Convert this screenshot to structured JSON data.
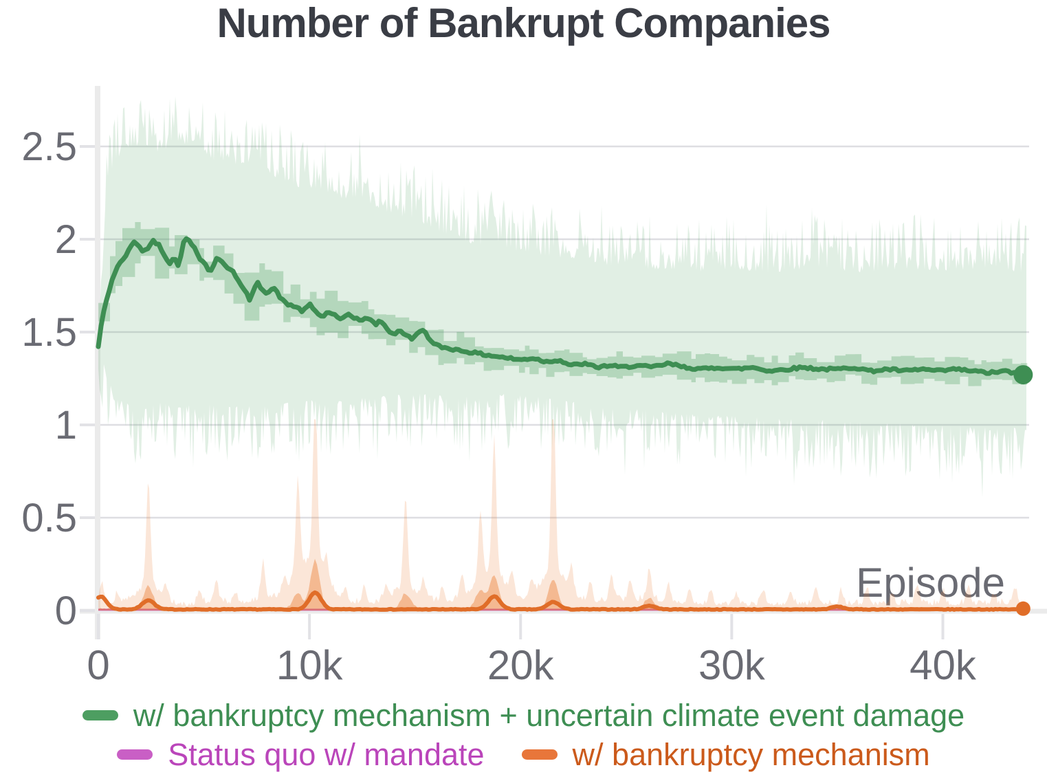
{
  "title": "Number of Bankrupt Companies",
  "colors": {
    "green_line": "#3e8e53",
    "green_band_light": "rgba(77,158,97,0.17)",
    "green_band_mid": "rgba(77,158,97,0.30)",
    "green_swatch": "#4d9e61",
    "green_text": "#3e8e53",
    "orange_line": "#e06d28",
    "orange_band_light": "rgba(235,130,60,0.20)",
    "orange_band_mid": "rgba(235,130,60,0.45)",
    "orange_swatch": "#e8763a",
    "orange_text": "#cb5a1b",
    "magenta_line": "#c65bc6",
    "magenta_swatch": "#c95fc5",
    "magenta_text": "#ba45ba",
    "title_color": "#3a3d45",
    "axis_text": "#6a6b73",
    "grid": "#dedee2",
    "axis_line": "#ebebeb",
    "tick_mark": "#e2e2e6"
  },
  "legend": {
    "items": [
      {
        "label": "w/ bankruptcy mechanism + uncertain climate event damage",
        "swatch": "#4d9e61",
        "text_color": "#3e8e53"
      },
      {
        "label": "Status quo w/ mandate",
        "swatch": "#c95fc5",
        "text_color": "#ba45ba"
      },
      {
        "label": "w/ bankruptcy mechanism",
        "swatch": "#e8763a",
        "text_color": "#cb5a1b"
      }
    ]
  },
  "chart_data": {
    "type": "line",
    "title": "Number of Bankrupt Companies",
    "xlabel": "Episode",
    "ylabel": "",
    "xlim": [
      0,
      45000
    ],
    "ylim": [
      0,
      2.81
    ],
    "grid": "horizontal-only",
    "legend_position": "bottom",
    "x_ticks": [
      {
        "v": 0,
        "label": "0"
      },
      {
        "v": 10000,
        "label": "10k"
      },
      {
        "v": 20000,
        "label": "20k"
      },
      {
        "v": 30000,
        "label": "30k"
      },
      {
        "v": 40000,
        "label": "40k"
      }
    ],
    "y_ticks": [
      {
        "v": 0,
        "label": "0"
      },
      {
        "v": 0.5,
        "label": "0.5"
      },
      {
        "v": 1,
        "label": "1"
      },
      {
        "v": 1.5,
        "label": "1.5"
      },
      {
        "v": 2,
        "label": "2"
      },
      {
        "v": 2.5,
        "label": "2.5"
      }
    ],
    "series": [
      {
        "name": "w/ bankruptcy mechanism + uncertain climate event damage",
        "color_key": "green",
        "end_dot": true,
        "end_value": 1.27,
        "mean": [
          [
            0,
            1.42
          ],
          [
            150,
            1.55
          ],
          [
            300,
            1.63
          ],
          [
            500,
            1.72
          ],
          [
            700,
            1.8
          ],
          [
            900,
            1.85
          ],
          [
            1100,
            1.88
          ],
          [
            1400,
            1.93
          ],
          [
            1700,
            1.99
          ],
          [
            1900,
            1.97
          ],
          [
            2100,
            1.93
          ],
          [
            2300,
            1.95
          ],
          [
            2600,
            1.99
          ],
          [
            2900,
            1.97
          ],
          [
            3100,
            1.92
          ],
          [
            3400,
            1.87
          ],
          [
            3600,
            1.9
          ],
          [
            3800,
            1.86
          ],
          [
            4100,
            2.01
          ],
          [
            4300,
            1.99
          ],
          [
            4600,
            1.95
          ],
          [
            4800,
            1.9
          ],
          [
            5100,
            1.86
          ],
          [
            5300,
            1.82
          ],
          [
            5600,
            1.9
          ],
          [
            5800,
            1.88
          ],
          [
            6100,
            1.85
          ],
          [
            6400,
            1.83
          ],
          [
            6700,
            1.76
          ],
          [
            7000,
            1.71
          ],
          [
            7200,
            1.67
          ],
          [
            7500,
            1.77
          ],
          [
            7700,
            1.74
          ],
          [
            8000,
            1.71
          ],
          [
            8300,
            1.74
          ],
          [
            8600,
            1.69
          ],
          [
            8900,
            1.65
          ],
          [
            9300,
            1.64
          ],
          [
            9700,
            1.61
          ],
          [
            10000,
            1.65
          ],
          [
            10300,
            1.61
          ],
          [
            10600,
            1.58
          ],
          [
            10900,
            1.61
          ],
          [
            11200,
            1.59
          ],
          [
            11500,
            1.56
          ],
          [
            11800,
            1.6
          ],
          [
            12100,
            1.58
          ],
          [
            12500,
            1.56
          ],
          [
            12800,
            1.58
          ],
          [
            13100,
            1.54
          ],
          [
            13400,
            1.56
          ],
          [
            13700,
            1.51
          ],
          [
            14000,
            1.49
          ],
          [
            14300,
            1.51
          ],
          [
            14600,
            1.48
          ],
          [
            14900,
            1.46
          ],
          [
            15200,
            1.51
          ],
          [
            15500,
            1.5
          ],
          [
            15800,
            1.44
          ],
          [
            16200,
            1.42
          ],
          [
            16700,
            1.41
          ],
          [
            17200,
            1.4
          ],
          [
            17700,
            1.39
          ],
          [
            18200,
            1.38
          ],
          [
            18800,
            1.37
          ],
          [
            19400,
            1.36
          ],
          [
            20000,
            1.35
          ],
          [
            20600,
            1.36
          ],
          [
            21200,
            1.34
          ],
          [
            21800,
            1.35
          ],
          [
            22400,
            1.32
          ],
          [
            23000,
            1.33
          ],
          [
            23600,
            1.31
          ],
          [
            24200,
            1.32
          ],
          [
            24800,
            1.31
          ],
          [
            25500,
            1.32
          ],
          [
            26200,
            1.31
          ],
          [
            27000,
            1.33
          ],
          [
            27800,
            1.31
          ],
          [
            28600,
            1.3
          ],
          [
            29400,
            1.31
          ],
          [
            30200,
            1.3
          ],
          [
            31000,
            1.31
          ],
          [
            31800,
            1.29
          ],
          [
            32600,
            1.3
          ],
          [
            33400,
            1.31
          ],
          [
            34200,
            1.3
          ],
          [
            35000,
            1.3
          ],
          [
            35800,
            1.31
          ],
          [
            36600,
            1.29
          ],
          [
            37400,
            1.3
          ],
          [
            38200,
            1.29
          ],
          [
            39000,
            1.3
          ],
          [
            39800,
            1.29
          ],
          [
            40600,
            1.3
          ],
          [
            41400,
            1.29
          ],
          [
            42200,
            1.28
          ],
          [
            43000,
            1.29
          ],
          [
            43600,
            1.27
          ],
          [
            44000,
            1.27
          ]
        ],
        "band_outer_top": [
          [
            0,
            1.65
          ],
          [
            400,
            2.45
          ],
          [
            800,
            2.62
          ],
          [
            1500,
            2.7
          ],
          [
            2500,
            2.66
          ],
          [
            3500,
            2.7
          ],
          [
            4500,
            2.72
          ],
          [
            5500,
            2.62
          ],
          [
            6500,
            2.6
          ],
          [
            7500,
            2.62
          ],
          [
            8500,
            2.52
          ],
          [
            9500,
            2.48
          ],
          [
            10500,
            2.46
          ],
          [
            11500,
            2.42
          ],
          [
            12500,
            2.42
          ],
          [
            13500,
            2.35
          ],
          [
            14500,
            2.32
          ],
          [
            15500,
            2.28
          ],
          [
            16500,
            2.22
          ],
          [
            17500,
            2.18
          ],
          [
            18500,
            2.16
          ],
          [
            19500,
            2.14
          ],
          [
            20500,
            2.12
          ],
          [
            22000,
            2.1
          ],
          [
            24000,
            2.06
          ],
          [
            26000,
            2.04
          ],
          [
            28000,
            2.02
          ],
          [
            30000,
            2.04
          ],
          [
            32000,
            2.02
          ],
          [
            34000,
            2.05
          ],
          [
            36000,
            2.02
          ],
          [
            38000,
            2.04
          ],
          [
            40000,
            2.03
          ],
          [
            42000,
            2.04
          ],
          [
            44000,
            2.02
          ]
        ],
        "band_outer_bottom": [
          [
            0,
            1.3
          ],
          [
            300,
            1.1
          ],
          [
            700,
            0.98
          ],
          [
            1200,
            0.92
          ],
          [
            2000,
            0.9
          ],
          [
            3000,
            0.92
          ],
          [
            4000,
            0.9
          ],
          [
            5000,
            0.92
          ],
          [
            6000,
            0.9
          ],
          [
            7000,
            0.92
          ],
          [
            8000,
            0.9
          ],
          [
            9000,
            0.92
          ],
          [
            10000,
            0.94
          ],
          [
            11000,
            0.92
          ],
          [
            12000,
            0.94
          ],
          [
            13000,
            0.95
          ],
          [
            14000,
            0.96
          ],
          [
            15000,
            0.97
          ],
          [
            16000,
            0.96
          ],
          [
            17000,
            0.95
          ],
          [
            18000,
            0.96
          ],
          [
            19000,
            0.97
          ],
          [
            20000,
            0.96
          ],
          [
            21000,
            0.95
          ],
          [
            22000,
            0.93
          ],
          [
            23000,
            0.92
          ],
          [
            24000,
            0.9
          ],
          [
            25000,
            0.89
          ],
          [
            26000,
            0.88
          ],
          [
            27000,
            0.87
          ],
          [
            28000,
            0.86
          ],
          [
            29000,
            0.85
          ],
          [
            30000,
            0.85
          ],
          [
            31000,
            0.84
          ],
          [
            32000,
            0.84
          ],
          [
            33000,
            0.83
          ],
          [
            34000,
            0.83
          ],
          [
            35000,
            0.82
          ],
          [
            36000,
            0.82
          ],
          [
            37000,
            0.81
          ],
          [
            38000,
            0.81
          ],
          [
            39000,
            0.8
          ],
          [
            40000,
            0.8
          ],
          [
            41000,
            0.8
          ],
          [
            42000,
            0.79
          ],
          [
            43000,
            0.79
          ],
          [
            44000,
            0.78
          ]
        ]
      },
      {
        "name": "Status quo w/ mandate",
        "color_key": "magenta",
        "end_dot": false,
        "mean": [
          [
            0,
            0.004
          ],
          [
            44000,
            0.004
          ]
        ]
      },
      {
        "name": "w/ bankruptcy mechanism",
        "color_key": "orange",
        "end_dot": true,
        "end_value": 0.01,
        "baseline": 0.012,
        "spikes_light": [
          [
            150,
            0.1
          ],
          [
            900,
            0.05
          ],
          [
            2370,
            0.56
          ],
          [
            3200,
            0.06
          ],
          [
            4800,
            0.07
          ],
          [
            5600,
            0.1
          ],
          [
            6500,
            0.06
          ],
          [
            7800,
            0.2
          ],
          [
            8800,
            0.08
          ],
          [
            9450,
            0.5
          ],
          [
            10270,
            1.0
          ],
          [
            10800,
            0.12
          ],
          [
            11700,
            0.07
          ],
          [
            12600,
            0.09
          ],
          [
            13600,
            0.07
          ],
          [
            14550,
            0.48
          ],
          [
            15400,
            0.1
          ],
          [
            16300,
            0.08
          ],
          [
            17200,
            0.12
          ],
          [
            18100,
            0.36
          ],
          [
            18750,
            0.72
          ],
          [
            19600,
            0.12
          ],
          [
            20500,
            0.09
          ],
          [
            21550,
            0.95
          ],
          [
            22400,
            0.12
          ],
          [
            23300,
            0.09
          ],
          [
            24300,
            0.14
          ],
          [
            25200,
            0.1
          ],
          [
            26100,
            0.16
          ],
          [
            27000,
            0.09
          ],
          [
            28000,
            0.08
          ],
          [
            29000,
            0.07
          ],
          [
            30200,
            0.06
          ],
          [
            31500,
            0.08
          ],
          [
            32800,
            0.07
          ],
          [
            34000,
            0.09
          ],
          [
            35200,
            0.07
          ],
          [
            36400,
            0.08
          ],
          [
            37600,
            0.06
          ],
          [
            38800,
            0.09
          ],
          [
            40000,
            0.07
          ],
          [
            41200,
            0.08
          ],
          [
            42400,
            0.06
          ],
          [
            43400,
            0.09
          ]
        ],
        "bumps_mid": [
          [
            2370,
            0.12
          ],
          [
            9450,
            0.08
          ],
          [
            10270,
            0.26
          ],
          [
            14550,
            0.08
          ],
          [
            18100,
            0.1
          ],
          [
            18750,
            0.18
          ],
          [
            21550,
            0.16
          ],
          [
            26100,
            0.06
          ]
        ],
        "bumps_solid": [
          [
            100,
            0.07
          ],
          [
            2370,
            0.05
          ],
          [
            10270,
            0.09
          ],
          [
            18750,
            0.07
          ],
          [
            21550,
            0.04
          ],
          [
            26100,
            0.02
          ],
          [
            35000,
            0.015
          ]
        ]
      }
    ]
  }
}
